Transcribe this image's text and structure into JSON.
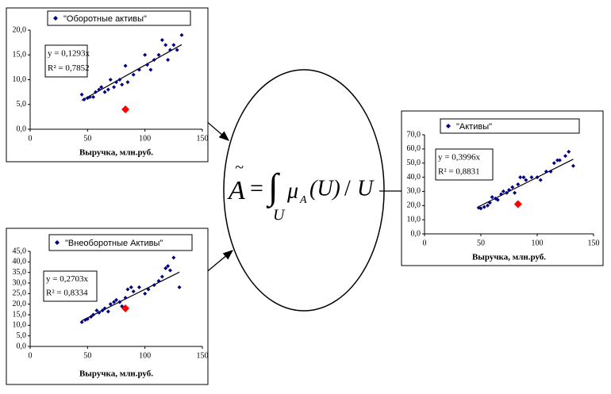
{
  "chart_data": [
    {
      "type": "scatter",
      "title": "\"Оборотные активы\"",
      "x_label": "Выручка, млн.руб.",
      "xlim": [
        0,
        150
      ],
      "xticks": [
        0,
        50,
        100,
        150
      ],
      "ylim": [
        0,
        20
      ],
      "yticks": [
        {
          "value": 0,
          "label": "0,0"
        },
        {
          "value": 5,
          "label": "5,0"
        },
        {
          "value": 10,
          "label": "10,0"
        },
        {
          "value": 15,
          "label": "15,0"
        },
        {
          "value": 20,
          "label": "20,0"
        }
      ],
      "series": [
        {
          "name": "\"Оборотные активы\"",
          "color": "#000080",
          "x": [
            45,
            47,
            50,
            52,
            55,
            57,
            60,
            62,
            65,
            68,
            70,
            73,
            75,
            78,
            80,
            83,
            85,
            90,
            95,
            100,
            102,
            105,
            108,
            112,
            115,
            118,
            120,
            122,
            125,
            128,
            132
          ],
          "values": [
            7,
            6,
            6.3,
            6.5,
            6.5,
            7.5,
            8,
            8.5,
            7.5,
            8,
            10,
            8.5,
            9.5,
            10,
            9,
            12.8,
            9.5,
            11,
            12,
            15,
            13,
            12,
            14,
            15,
            18,
            17,
            14,
            16,
            17,
            16,
            19
          ]
        }
      ],
      "highlight": {
        "x": 83,
        "y": 4,
        "color": "#ff0000"
      },
      "trendline": {
        "slope": 0.1293,
        "equation": "y = 0,1293x",
        "r2": "R² = 0,7852"
      }
    },
    {
      "type": "scatter",
      "title": "\"Внеоборотные Активы\"",
      "x_label": "Выручка, млн.руб.",
      "xlim": [
        0,
        150
      ],
      "xticks": [
        0,
        50,
        100,
        150
      ],
      "ylim": [
        0,
        45
      ],
      "yticks": [
        {
          "value": 0,
          "label": "0,0"
        },
        {
          "value": 5,
          "label": "5,0"
        },
        {
          "value": 10,
          "label": "10,0"
        },
        {
          "value": 15,
          "label": "15,0"
        },
        {
          "value": 20,
          "label": "20,0"
        },
        {
          "value": 25,
          "label": "25,0"
        },
        {
          "value": 30,
          "label": "30,0"
        },
        {
          "value": 35,
          "label": "35,0"
        },
        {
          "value": 40,
          "label": "40,0"
        },
        {
          "value": 45,
          "label": "45,0"
        }
      ],
      "series": [
        {
          "name": "\"Внеоборотные Активы\"",
          "color": "#000080",
          "x": [
            45,
            48,
            50,
            53,
            55,
            58,
            60,
            63,
            65,
            68,
            70,
            73,
            75,
            78,
            80,
            83,
            85,
            88,
            90,
            95,
            100,
            103,
            108,
            112,
            115,
            118,
            120,
            122,
            125,
            130
          ],
          "values": [
            11.5,
            12.5,
            13,
            14,
            15,
            17,
            16,
            17,
            18,
            16.5,
            20,
            21,
            22,
            21,
            19,
            23,
            27,
            28,
            26,
            28,
            25,
            27,
            29,
            31,
            33,
            37,
            38,
            36,
            42,
            28
          ]
        }
      ],
      "highlight": {
        "x": 83,
        "y": 18,
        "color": "#ff0000"
      },
      "trendline": {
        "slope": 0.2703,
        "equation": "y = 0,2703x",
        "r2": "R² = 0,8334"
      }
    },
    {
      "type": "scatter",
      "title": "\"Активы\"",
      "x_label": "Выручка, млн.руб.",
      "xlim": [
        0,
        150
      ],
      "xticks": [
        0,
        50,
        100,
        150
      ],
      "ylim": [
        0,
        70
      ],
      "yticks": [
        {
          "value": 0,
          "label": "0,0"
        },
        {
          "value": 10,
          "label": "10,0"
        },
        {
          "value": 20,
          "label": "20,0"
        },
        {
          "value": 30,
          "label": "30,0"
        },
        {
          "value": 40,
          "label": "40,0"
        },
        {
          "value": 50,
          "label": "50,0"
        },
        {
          "value": 60,
          "label": "60,0"
        },
        {
          "value": 70,
          "label": "70,0"
        }
      ],
      "series": [
        {
          "name": "\"Активы\"",
          "color": "#000080",
          "x": [
            48,
            50,
            53,
            56,
            58,
            60,
            63,
            65,
            68,
            70,
            73,
            75,
            78,
            80,
            83,
            85,
            88,
            90,
            95,
            100,
            103,
            108,
            112,
            115,
            118,
            120,
            125,
            128,
            132
          ],
          "values": [
            18.5,
            18,
            19,
            20,
            22,
            26,
            25,
            24,
            28,
            30,
            29,
            31,
            33,
            29,
            35,
            40,
            40,
            38,
            40,
            40,
            38,
            44,
            44,
            50,
            52,
            52,
            55,
            58,
            48
          ]
        }
      ],
      "highlight": {
        "x": 83,
        "y": 21,
        "color": "#ff0000"
      },
      "trendline": {
        "slope": 0.3996,
        "equation": "y = 0,3996x",
        "r2": "R² = 0,8831"
      }
    }
  ],
  "formula": {
    "tilde": "~",
    "lhs": "A",
    "eq": "=",
    "integral": "∫",
    "mu": "μ",
    "mu_sub": "A",
    "arg": "(U)",
    "slash": "/",
    "den": "U",
    "lower": "U"
  }
}
